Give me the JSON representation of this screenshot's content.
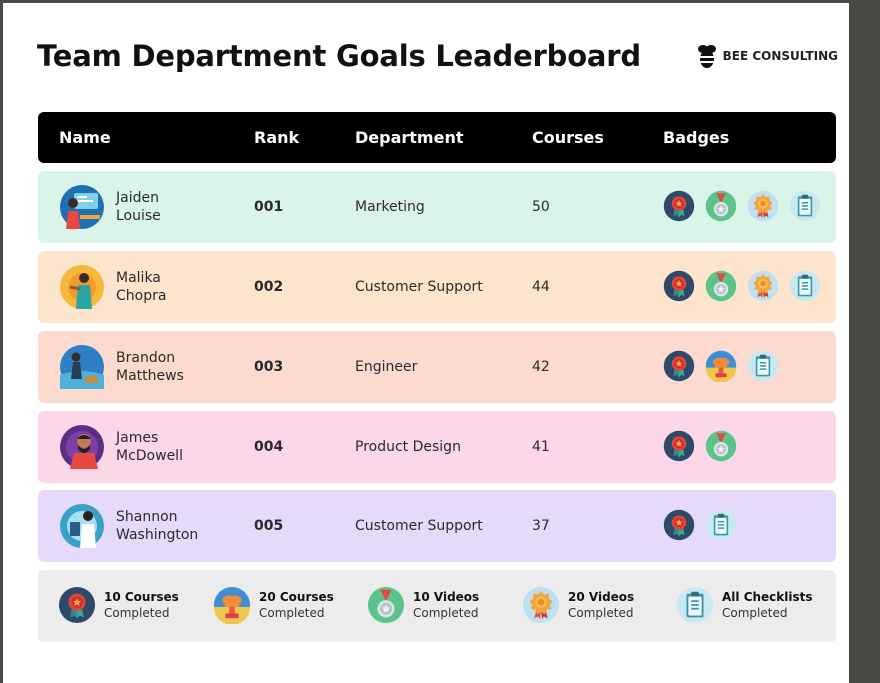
{
  "page": {
    "title": "Team Department Goals Leaderboard",
    "brand": "BEE CONSULTING"
  },
  "columns": {
    "name": "Name",
    "rank": "Rank",
    "department": "Department",
    "courses": "Courses",
    "badges": "Badges"
  },
  "rows": [
    {
      "first": "Jaiden",
      "last": "Louise",
      "rank": "001",
      "department": "Marketing",
      "courses": "50",
      "bg": "#daf4ea",
      "badges": [
        "10 Courses Completed",
        "10 Videos Completed",
        "20 Videos Completed",
        "All Checklists Completed"
      ]
    },
    {
      "first": "Malika",
      "last": "Chopra",
      "rank": "002",
      "department": "Customer Support",
      "courses": "44",
      "bg": "#fde4cc",
      "badges": [
        "10 Courses Completed",
        "10 Videos Completed",
        "20 Videos Completed",
        "All Checklists Completed"
      ]
    },
    {
      "first": "Brandon",
      "last": "Matthews",
      "rank": "003",
      "department": "Engineer",
      "courses": "42",
      "bg": "#fcdad0",
      "badges": [
        "10 Courses Completed",
        "20 Courses Completed",
        "All Checklists Completed"
      ]
    },
    {
      "first": "James",
      "last": "McDowell",
      "rank": "004",
      "department": "Product Design",
      "courses": "41",
      "bg": "#fbd7e7",
      "badges": [
        "10 Courses Completed",
        "10 Videos Completed"
      ]
    },
    {
      "first": "Shannon",
      "last": "Washington",
      "rank": "005",
      "department": "Customer Support",
      "courses": "37",
      "bg": "#e6dafa",
      "badges": [
        "10 Courses Completed",
        "All Checklists Completed"
      ]
    }
  ],
  "legend": [
    {
      "line1": "10 Courses",
      "line2": "Completed",
      "icon": "red-medal-badge-icon"
    },
    {
      "line1": "20 Courses",
      "line2": "Completed",
      "icon": "trophy-badge-icon"
    },
    {
      "line1": "10 Videos",
      "line2": "Completed",
      "icon": "silver-medal-badge-icon"
    },
    {
      "line1": "20 Videos",
      "line2": "Completed",
      "icon": "orange-ribbon-badge-icon"
    },
    {
      "line1": "All Checklists",
      "line2": "Completed",
      "icon": "checklist-badge-icon"
    }
  ],
  "colors": {
    "header_bg": "#000000",
    "legend_bg": "#ececec"
  }
}
